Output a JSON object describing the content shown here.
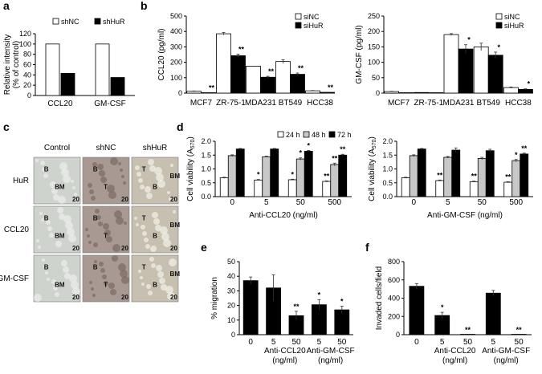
{
  "chart_data": [
    {
      "panel": "a",
      "type": "bar",
      "categories": [
        "CCL20",
        "GM-CSF"
      ],
      "series": [
        {
          "name": "shNC",
          "values": [
            100,
            100
          ],
          "color": "#ffffff"
        },
        {
          "name": "shHuR",
          "values": [
            43,
            35
          ],
          "color": "#000000"
        }
      ],
      "ylabel": "Relative intensity\n(% of control)",
      "ylim": [
        0,
        120
      ],
      "yticks": [
        0,
        20,
        40,
        60,
        80,
        100,
        120
      ],
      "legend": "top"
    },
    {
      "panel": "b1",
      "type": "bar",
      "categories": [
        "MCF7",
        "ZR-75-1",
        "MDA231",
        "BT549",
        "HCC38"
      ],
      "series": [
        {
          "name": "siNC",
          "values": [
            12,
            385,
            175,
            205,
            15
          ],
          "errors": [
            2,
            8,
            0,
            12,
            2
          ],
          "color": "#ffffff"
        },
        {
          "name": "siHuR",
          "values": [
            2,
            243,
            103,
            122,
            5
          ],
          "errors": [
            0,
            10,
            6,
            8,
            1
          ],
          "color": "#000000"
        }
      ],
      "stars": [
        "**",
        "**",
        "**",
        "**",
        "**"
      ],
      "ylabel": "CCL20 (pg/ml)",
      "ylim": [
        0,
        500
      ],
      "yticks": [
        0,
        100,
        200,
        300,
        400,
        500
      ],
      "legend": "top-right"
    },
    {
      "panel": "b2",
      "type": "bar",
      "categories": [
        "MCF7",
        "ZR-75-1",
        "MDA231",
        "BT549",
        "HCC38"
      ],
      "series": [
        {
          "name": "siNC",
          "values": [
            5,
            2,
            190,
            150,
            18
          ],
          "errors": [
            1,
            0,
            3,
            12,
            2
          ],
          "color": "#ffffff"
        },
        {
          "name": "siHuR",
          "values": [
            1,
            0,
            143,
            123,
            12
          ],
          "errors": [
            0,
            0,
            14,
            10,
            2
          ],
          "color": "#000000"
        }
      ],
      "stars": [
        "",
        "",
        "*",
        "*",
        "*"
      ],
      "ylabel": "GM-CSF (pg/ml)",
      "ylim": [
        0,
        250
      ],
      "yticks": [
        0,
        50,
        100,
        150,
        200,
        250
      ],
      "legend": "top-right"
    },
    {
      "panel": "d1",
      "type": "bar",
      "categories": [
        "0",
        "5",
        "50",
        "500"
      ],
      "series": [
        {
          "name": "24 h",
          "values": [
            0.68,
            0.6,
            0.61,
            0.55
          ],
          "errors": [
            0.02,
            0.02,
            0.02,
            0.02
          ],
          "color": "#ffffff"
        },
        {
          "name": "48 h",
          "values": [
            1.48,
            1.44,
            1.36,
            1.16
          ],
          "errors": [
            0.03,
            0.02,
            0.04,
            0.05
          ],
          "color": "#c8c8c8"
        },
        {
          "name": "72 h",
          "values": [
            1.72,
            1.72,
            1.64,
            1.5
          ],
          "errors": [
            0.02,
            0.02,
            0.03,
            0.03
          ],
          "color": "#000000"
        }
      ],
      "stars": [
        [
          "",
          "",
          ""
        ],
        [
          "*",
          "",
          ""
        ],
        [
          "*",
          "*",
          "*"
        ],
        [
          "**",
          "**",
          "**"
        ]
      ],
      "ylabel": "Cell viability (A570)",
      "xlabel": "Anti-CCL20 (ng/ml)",
      "ylim": [
        0,
        2.0
      ],
      "yticks": [
        "0.0",
        "0.5",
        "1.0",
        "1.5",
        "2.0"
      ]
    },
    {
      "panel": "d2",
      "type": "bar",
      "categories": [
        "0",
        "5",
        "50",
        "500"
      ],
      "series": [
        {
          "name": "24 h",
          "values": [
            0.68,
            0.58,
            0.54,
            0.52
          ],
          "errors": [
            0.02,
            0.02,
            0.02,
            0.02
          ],
          "color": "#ffffff"
        },
        {
          "name": "48 h",
          "values": [
            1.48,
            1.42,
            1.38,
            1.3
          ],
          "errors": [
            0.03,
            0.03,
            0.04,
            0.04
          ],
          "color": "#c8c8c8"
        },
        {
          "name": "72 h",
          "values": [
            1.72,
            1.68,
            1.66,
            1.54
          ],
          "errors": [
            0.02,
            0.08,
            0.05,
            0.03
          ],
          "color": "#000000"
        }
      ],
      "stars": [
        [
          "",
          "",
          ""
        ],
        [
          "**",
          "",
          ""
        ],
        [
          "**",
          "",
          ""
        ],
        [
          "**",
          "*",
          "**"
        ]
      ],
      "ylabel": "Cell viability (A570)",
      "xlabel": "Anti-GM-CSF (ng/ml)",
      "ylim": [
        0,
        2.0
      ],
      "yticks": [
        "0.0",
        "0.5",
        "1.0",
        "1.5",
        "2.0"
      ]
    },
    {
      "panel": "e",
      "type": "bar",
      "categories": [
        "0",
        "5",
        "50",
        "5",
        "50"
      ],
      "series": [
        {
          "name": "",
          "values": [
            37,
            32,
            13,
            20.5,
            17
          ],
          "errors": [
            2.5,
            9,
            3,
            3.5,
            2.5
          ],
          "color": "#000000"
        }
      ],
      "stars": [
        "",
        "",
        "**",
        "*",
        "*"
      ],
      "ylabel": "% migration",
      "group_labels": [
        "Anti-CCL20\n(ng/ml)",
        "Anti-GM-CSF\n(ng/ml)"
      ],
      "ylim": [
        0,
        50
      ],
      "yticks": [
        0,
        10,
        20,
        30,
        40,
        50
      ]
    },
    {
      "panel": "f",
      "type": "bar",
      "categories": [
        "0",
        "5",
        "50",
        "5",
        "50"
      ],
      "series": [
        {
          "name": "",
          "values": [
            530,
            210,
            2,
            455,
            2
          ],
          "errors": [
            30,
            35,
            0,
            30,
            0
          ],
          "color": "#000000"
        }
      ],
      "stars": [
        "",
        "*",
        "**",
        "",
        "**"
      ],
      "ylabel": "Invaded cells/field",
      "group_labels": [
        "Anti-CCL20\n(ng/ml)",
        "Anti-GM-CSF\n(ng/ml)"
      ],
      "ylim": [
        0,
        800
      ],
      "yticks": [
        0,
        200,
        400,
        600,
        800
      ]
    }
  ],
  "panel_labels": [
    "a",
    "b",
    "c",
    "d",
    "e",
    "f"
  ],
  "histology": {
    "columns": [
      "Control",
      "shNC",
      "shHuR"
    ],
    "rows": [
      "HuR",
      "CCL20",
      "GM-CSF"
    ],
    "tissue_labels": [
      [
        "B",
        "BM"
      ],
      [
        "B",
        "T"
      ],
      [
        "T",
        "B",
        "BM"
      ],
      [
        "B",
        "BM"
      ],
      [
        "B",
        "T"
      ],
      [
        "T",
        "B",
        "BM"
      ],
      [
        "B",
        "BM"
      ],
      [
        "B",
        "T"
      ],
      [
        "T",
        "B",
        "BM"
      ]
    ],
    "scale_note": "20",
    "colors": {
      "control": "#cfd3ce",
      "tumor": "#a89a92",
      "hur": "#c7c0b0"
    }
  }
}
